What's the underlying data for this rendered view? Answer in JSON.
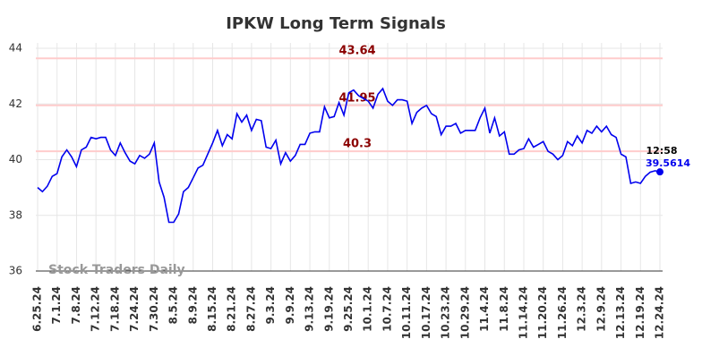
{
  "chart_data": {
    "type": "line",
    "title": "IPKW Long Term Signals",
    "categories": [
      "6.25.24",
      null,
      null,
      null,
      "7.1.24",
      null,
      null,
      null,
      "7.8.24",
      null,
      null,
      null,
      "7.12.24",
      null,
      null,
      null,
      "7.18.24",
      null,
      null,
      null,
      "7.24.24",
      null,
      null,
      null,
      "7.30.24",
      null,
      null,
      null,
      "8.5.24",
      null,
      null,
      null,
      "8.9.24",
      null,
      null,
      null,
      "8.15.24",
      null,
      null,
      null,
      "8.21.24",
      null,
      null,
      null,
      "8.27.24",
      null,
      null,
      null,
      "9.3.24",
      null,
      null,
      null,
      "9.9.24",
      null,
      null,
      null,
      "9.13.24",
      null,
      null,
      null,
      "9.19.24",
      null,
      null,
      null,
      "9.25.24",
      null,
      null,
      null,
      "10.1.24",
      null,
      null,
      null,
      "10.7.24",
      null,
      null,
      null,
      "10.11.24",
      null,
      null,
      null,
      "10.17.24",
      null,
      null,
      null,
      "10.23.24",
      null,
      null,
      null,
      "10.29.24",
      null,
      null,
      null,
      "11.4.24",
      null,
      null,
      null,
      "11.8.24",
      null,
      null,
      null,
      "11.14.24",
      null,
      null,
      null,
      "11.20.24",
      null,
      null,
      null,
      "11.26.24",
      null,
      null,
      null,
      "12.3.24",
      null,
      null,
      null,
      "12.9.24",
      null,
      null,
      null,
      "12.13.24",
      null,
      null,
      null,
      "12.19.24",
      null,
      null,
      null,
      "12.24.24"
    ],
    "series": [
      {
        "name": "IPKW",
        "color": "#0000ee",
        "values": [
          39.0,
          38.85,
          39.05,
          39.4,
          39.5,
          40.1,
          40.35,
          40.1,
          39.75,
          40.35,
          40.45,
          40.8,
          40.75,
          40.8,
          40.8,
          40.35,
          40.15,
          40.6,
          40.25,
          39.95,
          39.85,
          40.15,
          40.05,
          40.2,
          40.6,
          39.2,
          38.65,
          37.75,
          37.75,
          38.05,
          38.85,
          39.0,
          39.35,
          39.7,
          39.8,
          40.2,
          40.6,
          41.05,
          40.5,
          40.9,
          40.75,
          41.65,
          41.35,
          41.6,
          41.05,
          41.45,
          41.4,
          40.45,
          40.4,
          40.7,
          39.85,
          40.25,
          39.95,
          40.15,
          40.55,
          40.55,
          40.95,
          41.0,
          41.0,
          41.9,
          41.5,
          41.55,
          42.05,
          41.6,
          42.4,
          42.5,
          42.3,
          42.2,
          42.1,
          41.85,
          42.35,
          42.55,
          42.1,
          41.95,
          42.15,
          42.15,
          42.1,
          41.3,
          41.7,
          41.85,
          41.95,
          41.65,
          41.55,
          40.9,
          41.2,
          41.2,
          41.3,
          40.95,
          41.05,
          41.05,
          41.05,
          41.5,
          41.85,
          40.95,
          41.5,
          40.85,
          41.0,
          40.2,
          40.2,
          40.35,
          40.4,
          40.75,
          40.45,
          40.55,
          40.65,
          40.3,
          40.2,
          40.0,
          40.15,
          40.65,
          40.5,
          40.85,
          40.6,
          41.05,
          40.95,
          41.2,
          41.0,
          41.2,
          40.9,
          40.8,
          40.2,
          40.1,
          39.15,
          39.2,
          39.15,
          39.4,
          39.55,
          39.6,
          39.5614
        ]
      }
    ],
    "hlines": [
      43.64,
      41.95,
      40.3
    ],
    "hline_color": "#ffcccc",
    "hline_label_color": "#8b0000",
    "last_time": "12:58",
    "watermark": "Stock Traders Daily",
    "ylim": [
      36,
      44
    ],
    "yticks": [
      36,
      38,
      40,
      42,
      44
    ],
    "grid": true
  }
}
